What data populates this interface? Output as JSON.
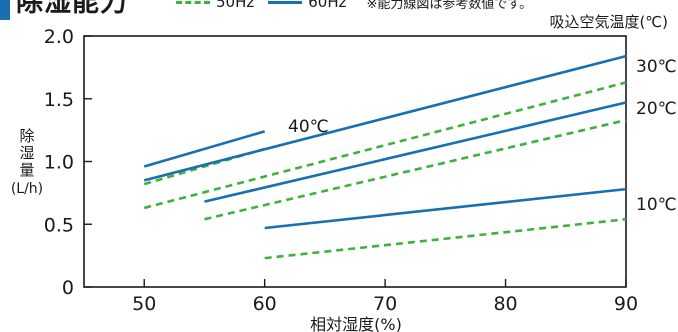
{
  "header": {
    "title": "除湿能力",
    "note": "※能力線図は参考数値です。",
    "accent_color": "#1a6fb0"
  },
  "chart_data": {
    "type": "line",
    "title": "除湿能力",
    "xlabel": "相対湿度(%)",
    "ylabel": [
      "除",
      "湿",
      "量",
      "(L/h)"
    ],
    "temperature_axis_title": "吸込空気温度(℃)",
    "xlim": [
      45,
      90
    ],
    "ylim": [
      0,
      2.0
    ],
    "x_ticks": [
      50,
      60,
      70,
      80,
      90
    ],
    "y_ticks": [
      0,
      0.5,
      1.0,
      1.5,
      2.0
    ],
    "y_tick_labels": [
      "0",
      "0.5",
      "1.0",
      "1.5",
      "2.0"
    ],
    "grid": false,
    "legend_position": "top",
    "legend": [
      {
        "label": "50Hz",
        "style": "dashed",
        "color": "#3db23d"
      },
      {
        "label": "60Hz",
        "style": "solid",
        "color": "#1a6fb0"
      }
    ],
    "temperature_labels": [
      "40℃",
      "30℃",
      "20℃",
      "10℃"
    ],
    "series": [
      {
        "temp": "40℃",
        "freq": "60Hz",
        "style": "solid",
        "color": "#1a6fb0",
        "x": [
          50,
          60
        ],
        "y": [
          0.96,
          1.24
        ]
      },
      {
        "temp": "40℃",
        "freq": "50Hz",
        "style": "dashed",
        "color": "#3db23d",
        "x": [
          50,
          60
        ],
        "y": [
          0.82,
          1.1
        ]
      },
      {
        "temp": "30℃",
        "freq": "60Hz",
        "style": "solid",
        "color": "#1a6fb0",
        "x": [
          50,
          90
        ],
        "y": [
          0.85,
          1.84
        ]
      },
      {
        "temp": "30℃",
        "freq": "50Hz",
        "style": "dashed",
        "color": "#3db23d",
        "x": [
          50,
          90
        ],
        "y": [
          0.63,
          1.63
        ]
      },
      {
        "temp": "20℃",
        "freq": "60Hz",
        "style": "solid",
        "color": "#1a6fb0",
        "x": [
          55,
          90
        ],
        "y": [
          0.68,
          1.47
        ]
      },
      {
        "temp": "20℃",
        "freq": "50Hz",
        "style": "dashed",
        "color": "#3db23d",
        "x": [
          55,
          90
        ],
        "y": [
          0.54,
          1.33
        ]
      },
      {
        "temp": "10℃",
        "freq": "60Hz",
        "style": "solid",
        "color": "#1a6fb0",
        "x": [
          60,
          90
        ],
        "y": [
          0.47,
          0.78
        ]
      },
      {
        "temp": "10℃",
        "freq": "50Hz",
        "style": "dashed",
        "color": "#3db23d",
        "x": [
          60,
          90
        ],
        "y": [
          0.23,
          0.54
        ]
      }
    ]
  }
}
